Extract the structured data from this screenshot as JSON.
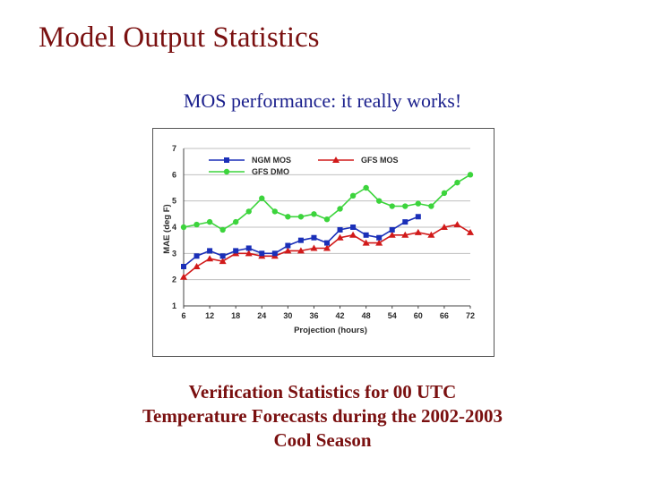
{
  "slide": {
    "title": "Model Output Statistics",
    "subtitle": "MOS performance:  it really works!",
    "caption_lines": [
      "Verification Statistics for 00 UTC",
      "Temperature Forecasts during the 2002-2003",
      "Cool Season"
    ]
  },
  "chart_data": {
    "type": "line",
    "title": "",
    "xlabel": "Projection (hours)",
    "ylabel": "MAE (deg F)",
    "xlim": [
      6,
      72
    ],
    "ylim": [
      1,
      7
    ],
    "xticks": [
      "6",
      "12",
      "18",
      "24",
      "30",
      "36",
      "42",
      "48",
      "54",
      "60",
      "66",
      "72"
    ],
    "yticks": [
      "1",
      "2",
      "3",
      "4",
      "5",
      "6",
      "7"
    ],
    "x": [
      6,
      9,
      12,
      15,
      18,
      21,
      24,
      27,
      30,
      33,
      36,
      39,
      42,
      45,
      48,
      51,
      54,
      57,
      60,
      63,
      66,
      69,
      72
    ],
    "series": [
      {
        "name": "NGM MOS",
        "color": "#1a2fb8",
        "marker": "square",
        "values": [
          2.5,
          2.9,
          3.1,
          2.9,
          3.1,
          3.2,
          3.0,
          3.0,
          3.3,
          3.5,
          3.6,
          3.4,
          3.9,
          4.0,
          3.7,
          3.6,
          3.9,
          4.2,
          4.4,
          null,
          null,
          null,
          null
        ]
      },
      {
        "name": "GFS MOS",
        "color": "#d11a1a",
        "marker": "triangle",
        "values": [
          2.1,
          2.5,
          2.8,
          2.7,
          3.0,
          3.0,
          2.9,
          2.9,
          3.1,
          3.1,
          3.2,
          3.2,
          3.6,
          3.7,
          3.4,
          3.4,
          3.7,
          3.7,
          3.8,
          3.7,
          4.0,
          4.1,
          3.8
        ]
      },
      {
        "name": "GFS DMO",
        "color": "#3cd43c",
        "marker": "circle",
        "values": [
          4.0,
          4.1,
          4.2,
          3.9,
          4.2,
          4.6,
          5.1,
          4.6,
          4.4,
          4.4,
          4.5,
          4.3,
          4.7,
          5.2,
          5.5,
          5.0,
          4.8,
          4.8,
          4.9,
          4.8,
          5.3,
          5.7,
          6.0
        ]
      }
    ],
    "grid": true,
    "legend_location": "top-left"
  }
}
